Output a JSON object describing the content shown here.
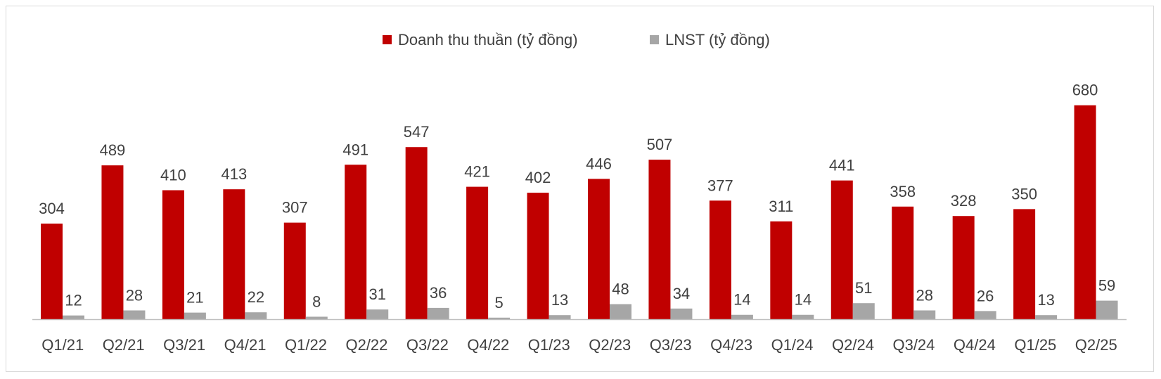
{
  "chart_data": {
    "type": "bar",
    "categories": [
      "Q1/21",
      "Q2/21",
      "Q3/21",
      "Q4/21",
      "Q1/22",
      "Q2/22",
      "Q3/22",
      "Q4/22",
      "Q1/23",
      "Q2/23",
      "Q3/23",
      "Q4/23",
      "Q1/24",
      "Q2/24",
      "Q3/24",
      "Q4/24",
      "Q1/25",
      "Q2/25"
    ],
    "series": [
      {
        "name": "Doanh thu thuần (tỷ đồng)",
        "color": "#C00000",
        "values": [
          304,
          489,
          410,
          413,
          307,
          491,
          547,
          421,
          402,
          446,
          507,
          377,
          311,
          441,
          358,
          328,
          350,
          680
        ]
      },
      {
        "name": "LNST (tỷ đồng)",
        "color": "#A6A6A6",
        "values": [
          12,
          28,
          21,
          22,
          8,
          31,
          36,
          5,
          13,
          48,
          34,
          14,
          14,
          51,
          28,
          26,
          13,
          59
        ]
      }
    ],
    "legend_position": "top-center",
    "grid": false,
    "ylim": [
      0,
      750
    ]
  }
}
